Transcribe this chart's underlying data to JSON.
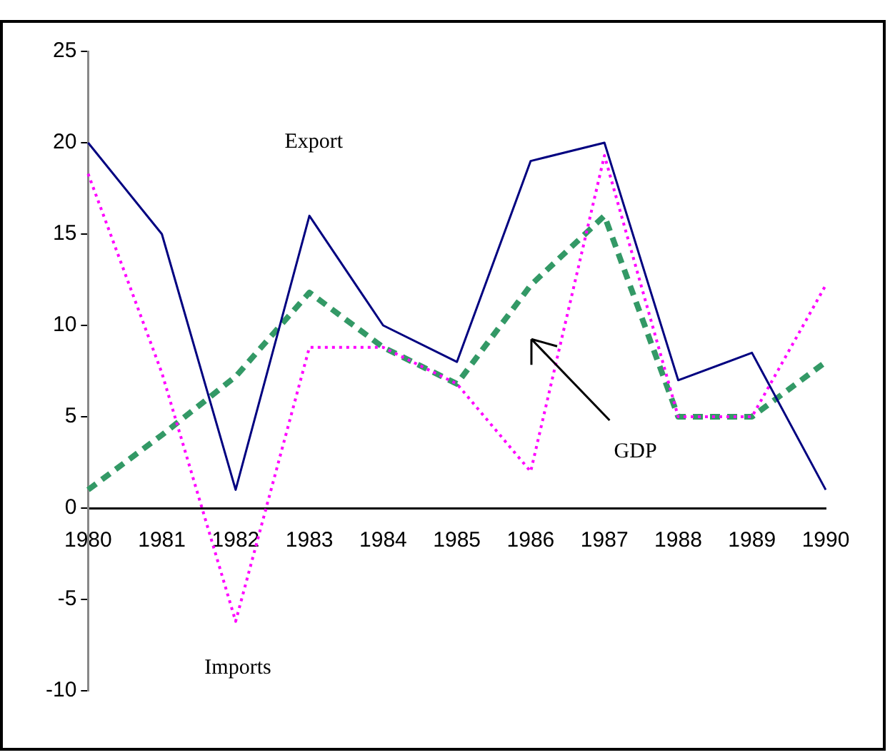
{
  "chart_data": {
    "type": "line",
    "categories": [
      "1980",
      "1981",
      "1982",
      "1983",
      "1984",
      "1985",
      "1986",
      "1987",
      "1988",
      "1989",
      "1990"
    ],
    "series": [
      {
        "color": "#000080",
        "line_style": "solid",
        "values": [
          20,
          15,
          1,
          16,
          10,
          8,
          19,
          20,
          7,
          8.5,
          1
        ]
      },
      {
        "color": "#ff00ff",
        "line_style": "dotted",
        "values": [
          18.3,
          7.4,
          -6.2,
          8.8,
          8.8,
          6.8,
          2,
          19.3,
          5,
          5,
          12.2
        ]
      },
      {
        "color": "#339966",
        "line_style": "dashed",
        "values": [
          1,
          4,
          7.2,
          11.8,
          8.8,
          6.8,
          12.2,
          16,
          5,
          5,
          8
        ]
      }
    ],
    "annotations": [
      "Export",
      "Imports",
      "GDP"
    ],
    "ylim": [
      -10,
      25
    ],
    "yticks": [
      -10,
      -5,
      0,
      5,
      10,
      15,
      20,
      25
    ],
    "grid": false,
    "legend": false,
    "marker": "none"
  }
}
